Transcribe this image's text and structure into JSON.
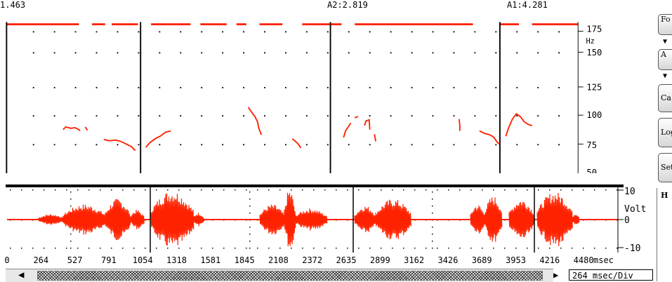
{
  "cursors": {
    "left": "1.463",
    "a2": "A2:2.819",
    "a1": "A1:4.281"
  },
  "pitch_panel": {
    "unit": "Hz",
    "y_ticks": [
      "175",
      "150",
      "125",
      "100",
      "75",
      "50"
    ]
  },
  "wave_panel": {
    "unit": "Volt",
    "y_ticks": [
      "10",
      "0",
      "-10"
    ]
  },
  "time_axis": {
    "unit": "msec",
    "ticks": [
      "0",
      "264",
      "527",
      "791",
      "1054",
      "1318",
      "1581",
      "1845",
      "2108",
      "2372",
      "2635",
      "2899",
      "3162",
      "3426",
      "3689",
      "3953",
      "4216",
      "4480"
    ]
  },
  "scale": {
    "label": "264 msec/Div"
  },
  "sidebar": {
    "buttons": [
      "Fo",
      "A",
      "Ca",
      "Log",
      "Set"
    ],
    "h_label": "H"
  },
  "colors": {
    "trace": "#ff2200",
    "grid_dots": "#000000",
    "cursor_line": "#000000"
  },
  "icons": {
    "scroll_left": "scroll-left-icon",
    "scroll_right": "scroll-right-icon",
    "chevron": "chevron-down-icon"
  }
}
